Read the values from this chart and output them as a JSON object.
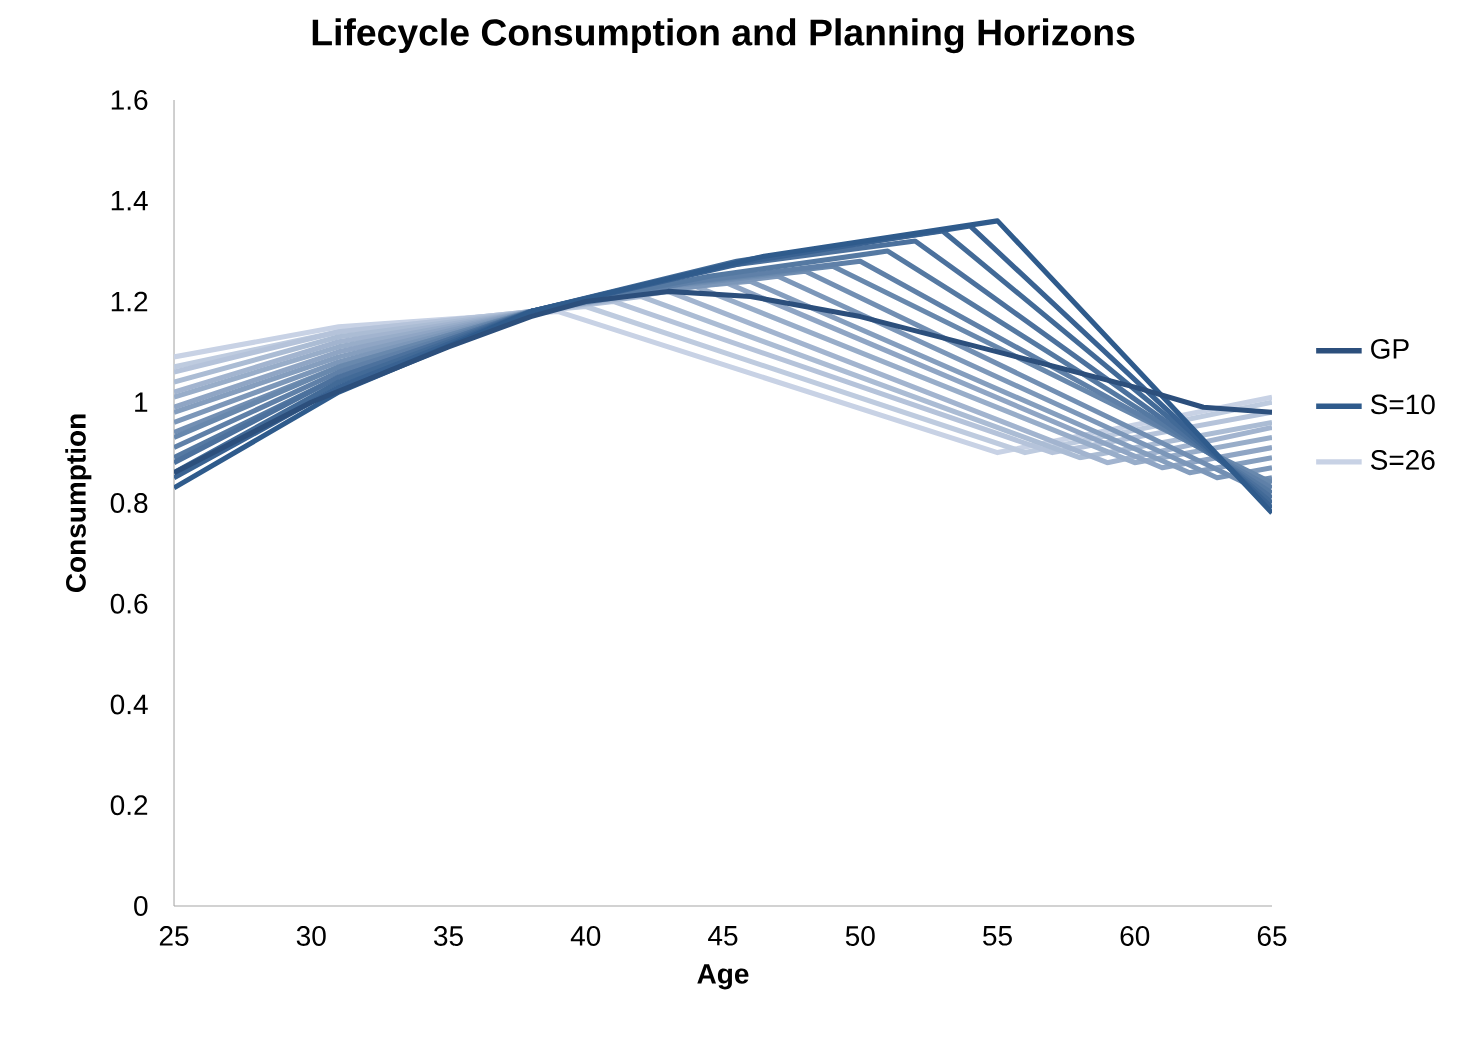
{
  "chart_data": {
    "type": "line",
    "title": "Lifecycle Consumption and Planning Horizons",
    "xlabel": "Age",
    "ylabel": "Consumption",
    "xlim": [
      25,
      65
    ],
    "xticks": [
      25,
      30,
      35,
      40,
      45,
      50,
      55,
      60,
      65
    ],
    "ylim": [
      0,
      1.6
    ],
    "yticks": [
      0,
      0.2,
      0.4,
      0.6,
      0.8,
      1,
      1.2,
      1.4,
      1.6
    ],
    "grid": false,
    "legend": "right",
    "series": [
      {
        "name": "GP",
        "color": "#2c4f7c",
        "x": [
          25,
          30,
          35,
          38,
          40,
          43,
          46,
          50,
          55,
          60,
          62.5,
          65
        ],
        "values": [
          0.86,
          1.0,
          1.11,
          1.17,
          1.2,
          1.22,
          1.21,
          1.17,
          1.1,
          1.03,
          0.99,
          0.98
        ]
      },
      {
        "name": "S=10",
        "color": "#2f5b8c",
        "x": [
          25,
          31,
          38,
          46.5,
          55,
          65
        ],
        "values": [
          0.83,
          1.02,
          1.18,
          1.29,
          1.36,
          0.78
        ]
      },
      {
        "color": "#396292",
        "x": [
          25,
          31,
          38,
          46,
          54,
          65
        ],
        "values": [
          0.85,
          1.03,
          1.18,
          1.28,
          1.35,
          0.79
        ]
      },
      {
        "color": "#426a97",
        "x": [
          25,
          31,
          38,
          45.5,
          53,
          65
        ],
        "values": [
          0.86,
          1.04,
          1.18,
          1.28,
          1.34,
          0.8
        ]
      },
      {
        "color": "#4c719d",
        "x": [
          25,
          31,
          38,
          45,
          52,
          65
        ],
        "values": [
          0.88,
          1.05,
          1.18,
          1.27,
          1.32,
          0.81
        ]
      },
      {
        "color": "#5579a2",
        "x": [
          25,
          31,
          38,
          44.5,
          51,
          65
        ],
        "values": [
          0.89,
          1.05,
          1.18,
          1.25,
          1.3,
          0.82
        ]
      },
      {
        "color": "#5f80a8",
        "x": [
          25,
          31,
          38,
          44,
          50,
          65
        ],
        "values": [
          0.91,
          1.06,
          1.18,
          1.24,
          1.28,
          0.83
        ]
      },
      {
        "color": "#6888ad",
        "x": [
          25,
          31,
          38,
          43.5,
          49,
          65
        ],
        "values": [
          0.93,
          1.07,
          1.18,
          1.235,
          1.27,
          0.84
        ]
      },
      {
        "color": "#728fb3",
        "x": [
          25,
          31,
          38,
          43,
          48,
          64,
          65
        ],
        "values": [
          0.94,
          1.07,
          1.18,
          1.23,
          1.26,
          0.84,
          0.85
        ]
      },
      {
        "color": "#7c97b9",
        "x": [
          25,
          31,
          38,
          42.5,
          47,
          63,
          65
        ],
        "values": [
          0.96,
          1.08,
          1.18,
          1.22,
          1.25,
          0.85,
          0.87
        ]
      },
      {
        "color": "#859ebe",
        "x": [
          25,
          31,
          38,
          42,
          46,
          62,
          65
        ],
        "values": [
          0.98,
          1.09,
          1.18,
          1.22,
          1.24,
          0.86,
          0.89
        ]
      },
      {
        "color": "#8fa5c4",
        "x": [
          25,
          31,
          38,
          41.5,
          45,
          61,
          65
        ],
        "values": [
          0.99,
          1.1,
          1.18,
          1.22,
          1.24,
          0.87,
          0.91
        ]
      },
      {
        "color": "#98adc9",
        "x": [
          25,
          31,
          38,
          41,
          44,
          60,
          65
        ],
        "values": [
          1.01,
          1.11,
          1.18,
          1.21,
          1.23,
          0.88,
          0.93
        ]
      },
      {
        "color": "#a2b4cf",
        "x": [
          25,
          31,
          38,
          43,
          59,
          65
        ],
        "values": [
          1.02,
          1.12,
          1.18,
          1.22,
          0.88,
          0.95
        ]
      },
      {
        "color": "#abbcd4",
        "x": [
          25,
          31,
          38,
          42,
          58,
          65
        ],
        "values": [
          1.04,
          1.13,
          1.18,
          1.21,
          0.89,
          0.96
        ]
      },
      {
        "color": "#b5c3da",
        "x": [
          25,
          31,
          38,
          41,
          57,
          65
        ],
        "values": [
          1.06,
          1.14,
          1.18,
          1.2,
          0.9,
          0.98
        ]
      },
      {
        "color": "#becbdf",
        "x": [
          25,
          31,
          38,
          40,
          56,
          65
        ],
        "values": [
          1.07,
          1.14,
          1.18,
          1.19,
          0.9,
          1.0
        ]
      },
      {
        "name": "S=26",
        "color": "#c8d2e5",
        "x": [
          25,
          31,
          39,
          55,
          65
        ],
        "values": [
          1.09,
          1.15,
          1.18,
          0.9,
          1.01
        ]
      }
    ]
  }
}
